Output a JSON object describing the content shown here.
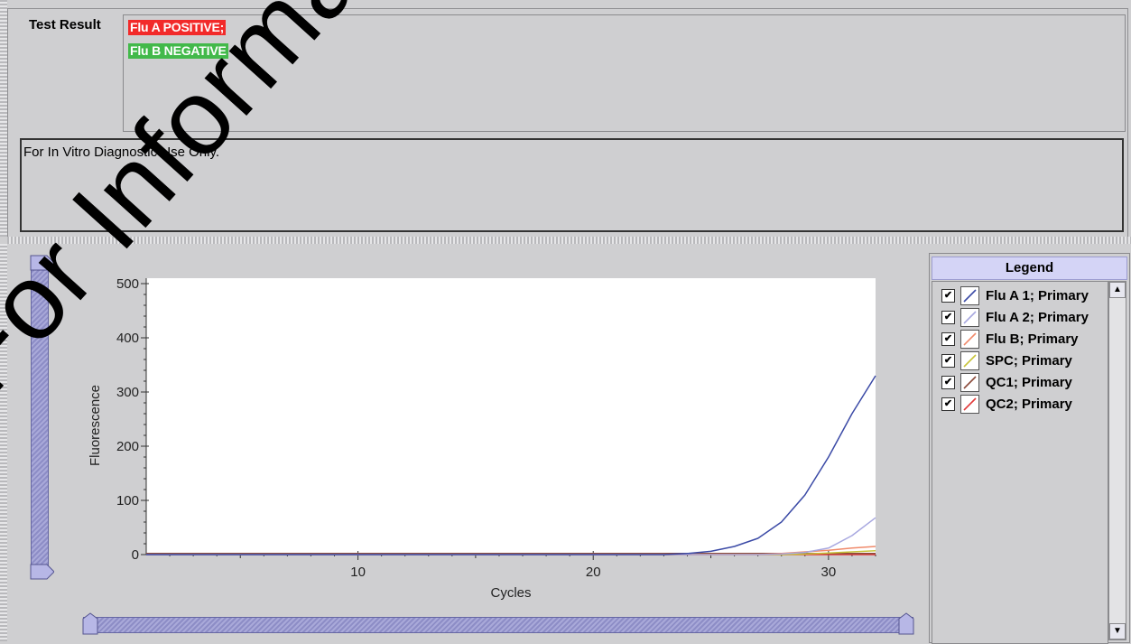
{
  "test_result": {
    "label": "Test Result",
    "lines": [
      "Flu A POSITIVE;",
      "Flu B NEGATIVE"
    ],
    "colors": {
      "positive": "#f22a2a",
      "negative": "#42b94a"
    }
  },
  "notes": "For In Vitro Diagnostic Use Only.",
  "watermark": "For Information Only - Not",
  "legend": {
    "title": "Legend",
    "items": [
      {
        "label": "Flu A 1; Primary",
        "color": "#3b4aa6",
        "checked": true
      },
      {
        "label": "Flu A 2; Primary",
        "color": "#a8a8e0",
        "checked": true
      },
      {
        "label": "Flu B; Primary",
        "color": "#f08a6b",
        "checked": true
      },
      {
        "label": "SPC; Primary",
        "color": "#c7c43a",
        "checked": true
      },
      {
        "label": "QC1; Primary",
        "color": "#8b4a3a",
        "checked": true
      },
      {
        "label": "QC2; Primary",
        "color": "#e23a3a",
        "checked": true
      }
    ]
  },
  "chart_data": {
    "type": "line",
    "title": "",
    "xlabel": "Cycles",
    "ylabel": "Fluorescence",
    "xlim": [
      1,
      32
    ],
    "ylim": [
      0,
      510
    ],
    "xticks": [
      10,
      20,
      30
    ],
    "yticks": [
      0,
      100,
      200,
      300,
      400,
      500
    ],
    "grid": false,
    "series": [
      {
        "name": "Flu A 1; Primary",
        "color": "#3b4aa6",
        "x": [
          1,
          23,
          24,
          25,
          26,
          27,
          28,
          29,
          30,
          31,
          32
        ],
        "y": [
          0,
          0,
          2,
          6,
          15,
          30,
          60,
          110,
          180,
          260,
          330
        ]
      },
      {
        "name": "Flu A 2; Primary",
        "color": "#a8a8e0",
        "x": [
          1,
          27,
          28,
          29,
          30,
          31,
          32
        ],
        "y": [
          0,
          0,
          1,
          4,
          12,
          35,
          68
        ]
      },
      {
        "name": "Flu B; Primary",
        "color": "#f08a6b",
        "x": [
          1,
          27,
          28,
          29,
          30,
          31,
          32
        ],
        "y": [
          0,
          0,
          2,
          5,
          8,
          12,
          15
        ]
      },
      {
        "name": "SPC; Primary",
        "color": "#c7c43a",
        "x": [
          1,
          28,
          29,
          30,
          31,
          32
        ],
        "y": [
          0,
          0,
          1,
          3,
          5,
          7
        ]
      },
      {
        "name": "QC1; Primary",
        "color": "#8b4a3a",
        "x": [
          1,
          32
        ],
        "y": [
          2,
          2
        ]
      },
      {
        "name": "QC2; Primary",
        "color": "#e23a3a",
        "x": [
          1,
          32
        ],
        "y": [
          0,
          0
        ]
      }
    ]
  }
}
